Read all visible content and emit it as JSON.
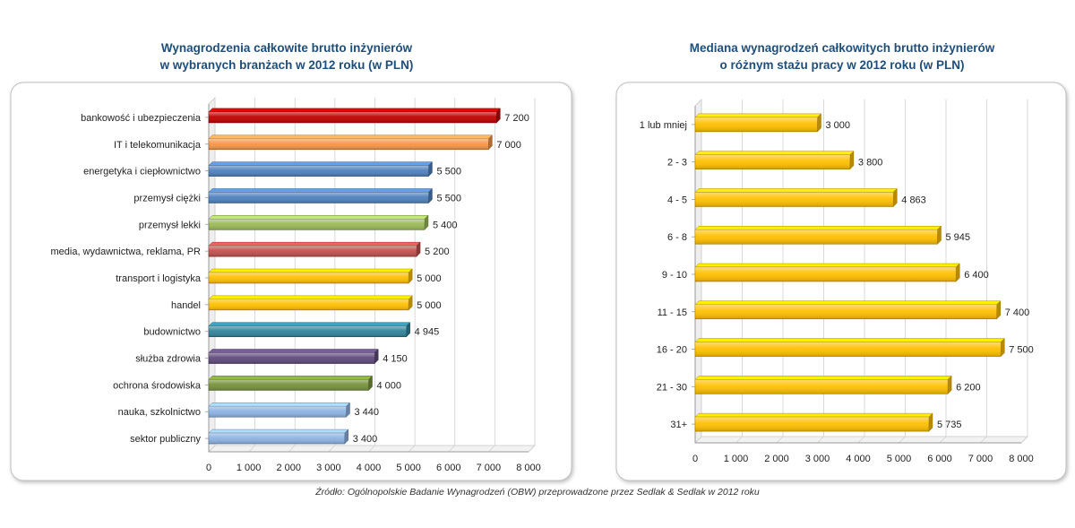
{
  "chart_data": [
    {
      "type": "bar",
      "orientation": "horizontal",
      "title_lines": [
        "Wynagrodzenia całkowite brutto inżynierów",
        "w wybranych branżach  w 2012 roku (w PLN)"
      ],
      "categories": [
        "bankowość i ubezpieczenia",
        "IT i telekomunikacja",
        "energetyka i ciepłownictwo",
        "przemysł ciężki",
        "przemysł lekki",
        "media, wydawnictwa,  reklama, PR",
        "transport i logistyka",
        "handel",
        "budownictwo",
        "służba zdrowia",
        "ochrona środowiska",
        "nauka, szkolnictwo",
        "sektor publiczny"
      ],
      "values": [
        7200,
        7000,
        5500,
        5500,
        5400,
        5200,
        5000,
        5000,
        4945,
        4150,
        4000,
        3440,
        3400
      ],
      "value_labels": [
        "7 200",
        "7 000",
        "5 500",
        "5 500",
        "5 400",
        "5 200",
        "5 000",
        "5 000",
        "4 945",
        "4 150",
        "4 000",
        "3 440",
        "3 400"
      ],
      "colors": [
        "#c00000",
        "#f79646",
        "#4f81bd",
        "#4f81bd",
        "#9bbb59",
        "#c0504d",
        "#ffc000",
        "#ffc000",
        "#31849b",
        "#604a7b",
        "#77933c",
        "#8db3e2",
        "#8db3e2"
      ],
      "xlim": [
        0,
        8000
      ],
      "xticks": [
        0,
        1000,
        2000,
        3000,
        4000,
        5000,
        6000,
        7000,
        8000
      ],
      "xtick_labels": [
        "0",
        "1 000",
        "2 000",
        "3 000",
        "4 000",
        "5 000",
        "6 000",
        "7 000",
        "8 000"
      ],
      "grid": true,
      "xlabel": "",
      "ylabel": ""
    },
    {
      "type": "bar",
      "orientation": "horizontal",
      "title_lines": [
        "Mediana wynagrodzeń całkowitych brutto inżynierów",
        "o różnym stażu pracy w 2012 roku (w PLN)"
      ],
      "categories": [
        "1 lub mniej",
        "2 - 3",
        "4 - 5",
        "6 - 8",
        "9 - 10",
        "11 - 15",
        "16 - 20",
        "21 - 30",
        "31+"
      ],
      "values": [
        3000,
        3800,
        4863,
        5945,
        6400,
        7400,
        7500,
        6200,
        5735
      ],
      "value_labels": [
        "3 000",
        "3 800",
        "4 863",
        "5 945",
        "6 400",
        "7 400",
        "7 500",
        "6 200",
        "5 735"
      ],
      "colors": [
        "#ffc000",
        "#ffc000",
        "#ffc000",
        "#ffc000",
        "#ffc000",
        "#ffc000",
        "#ffc000",
        "#ffc000",
        "#ffc000"
      ],
      "xlim": [
        0,
        8000
      ],
      "xticks": [
        0,
        1000,
        2000,
        3000,
        4000,
        5000,
        6000,
        7000,
        8000
      ],
      "xtick_labels": [
        "0",
        "1 000",
        "2 000",
        "3 000",
        "4 000",
        "5 000",
        "6 000",
        "7 000",
        "8 000"
      ],
      "grid": true,
      "xlabel": "",
      "ylabel": ""
    }
  ],
  "source_note": "Źródło: Ogólnopolskie Badanie Wynagrodzeń (OBW) przeprowadzone przez Sedlak & Sedlak w 2012 roku"
}
